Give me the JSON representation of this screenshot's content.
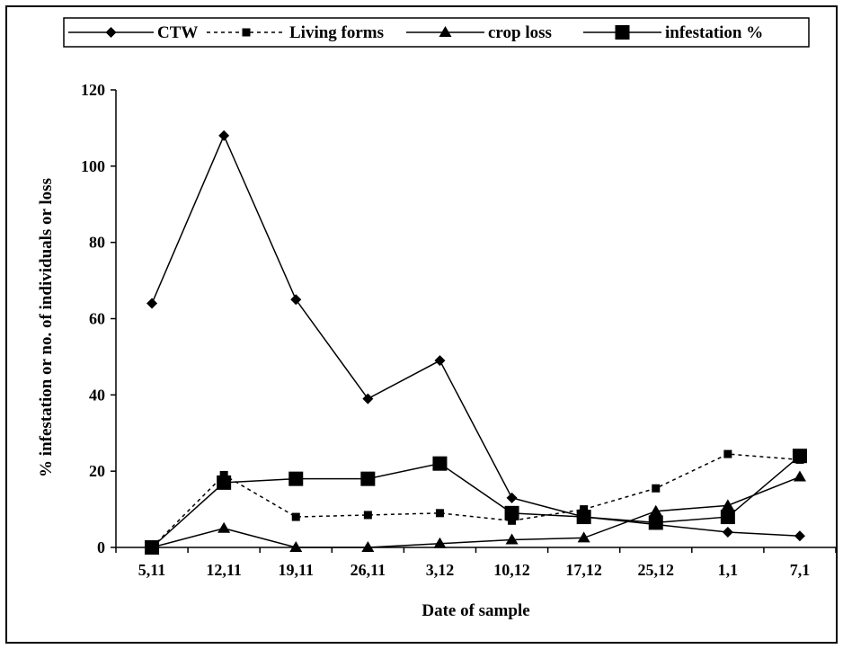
{
  "chart_data": {
    "type": "line",
    "xlabel": "Date of sample",
    "ylabel": "% infestation or no. of individuals or loss",
    "ylim": [
      0,
      120
    ],
    "yticks": [
      0,
      20,
      40,
      60,
      80,
      100,
      120
    ],
    "categories": [
      "5,11",
      "12,11",
      "19,11",
      "26,11",
      "3,12",
      "10,12",
      "17,12",
      "25,12",
      "1,1",
      "7,1"
    ],
    "legend_position": "top",
    "grid": false,
    "series": [
      {
        "name": "CTW",
        "marker": "diamond",
        "dash": "solid",
        "values": [
          64,
          108,
          65,
          39,
          49,
          13,
          8,
          6,
          4,
          3
        ]
      },
      {
        "name": "Living forms",
        "marker": "square-small",
        "dash": "dashed",
        "values": [
          0,
          19,
          8,
          8.5,
          9,
          7,
          10,
          15.5,
          24.5,
          23
        ]
      },
      {
        "name": "crop loss",
        "marker": "triangle",
        "dash": "solid",
        "values": [
          0,
          5,
          0,
          0,
          1,
          2,
          2.5,
          9.5,
          11,
          18.5
        ]
      },
      {
        "name": "infestation %",
        "marker": "square-large",
        "dash": "solid",
        "values": [
          0,
          17,
          18,
          18,
          22,
          9,
          8,
          6.5,
          8,
          24
        ]
      }
    ]
  }
}
